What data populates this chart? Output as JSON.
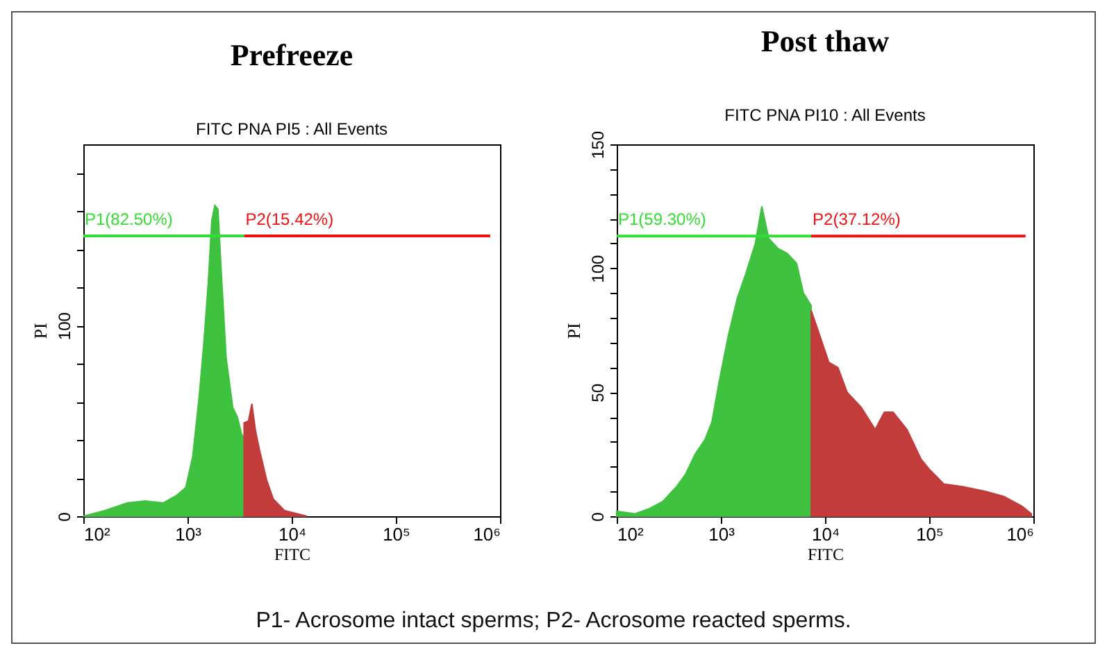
{
  "chart_data": [
    {
      "type": "area",
      "title": "Prefreeze",
      "subtitle": "FITC PNA PI5 : All Events",
      "xlabel": "FITC",
      "ylabel": "PI",
      "log": "x",
      "grid": false,
      "xlim": [
        100,
        1000000
      ],
      "xticks": [
        {
          "value": 100,
          "label": "10²"
        },
        {
          "value": 1000,
          "label": "10³"
        },
        {
          "value": 10000,
          "label": "10⁴"
        },
        {
          "value": 100000,
          "label": "10⁵"
        },
        {
          "value": 1000000,
          "label": "10⁶"
        }
      ],
      "ylim": [
        0,
        195
      ],
      "yticks": [
        0,
        {
          "value": 20,
          "label": null
        },
        {
          "value": 40,
          "label": null
        },
        {
          "value": 60,
          "label": null
        },
        {
          "value": 80,
          "label": null
        },
        100,
        {
          "value": 120,
          "label": null
        },
        {
          "value": 140,
          "label": null
        },
        {
          "value": 160,
          "label": null
        },
        {
          "value": 180,
          "label": null
        }
      ],
      "series": [
        {
          "color": "#3fc23f",
          "x": [
            100,
            162,
            265,
            392,
            583,
            790,
            960,
            1120,
            1290,
            1430,
            1580,
            1710,
            1830,
            1960,
            2140,
            2350,
            2720,
            3010,
            3310,
            3490
          ],
          "values": [
            0,
            3,
            7,
            8,
            7,
            11,
            15,
            31,
            62,
            90,
            122,
            155,
            163,
            161,
            122,
            83,
            57,
            52,
            43,
            41
          ]
        },
        {
          "color": "#c23c3c",
          "x": [
            3490,
            3850,
            4150,
            4490,
            4900,
            5750,
            6660,
            8500,
            14000
          ],
          "values": [
            49,
            50,
            59,
            45,
            35,
            19,
            9,
            3,
            0
          ]
        },
        {
          "type": "line",
          "color": "#33dd33",
          "x": [
            100,
            3490
          ],
          "values": [
            147,
            147
          ]
        },
        {
          "type": "line",
          "color": "#ee1111",
          "x": [
            3490,
            804000
          ],
          "values": [
            147,
            147
          ]
        }
      ],
      "annotations": [
        {
          "text": "P1(82.50%)",
          "x": 100,
          "y": 147
        },
        {
          "text": "P2(15.42%)",
          "x": 3490,
          "y": 147
        },
        "P1- Acrosome intact sperms; P2- Acrosome reacted sperms."
      ]
    },
    {
      "type": "area",
      "title": "Post thaw",
      "subtitle": "FITC PNA PI10 : All Events",
      "xlabel": "FITC",
      "ylabel": "PI",
      "log": "x",
      "grid": false,
      "xlim": [
        100,
        1000000
      ],
      "xticks": [
        {
          "value": 100,
          "label": "10²"
        },
        {
          "value": 1000,
          "label": "10³"
        },
        {
          "value": 10000,
          "label": "10⁴"
        },
        {
          "value": 100000,
          "label": "10⁵"
        },
        {
          "value": 1000000,
          "label": "10⁶"
        }
      ],
      "ylim": [
        0,
        150
      ],
      "yticks": [
        0,
        {
          "value": 10,
          "label": null
        },
        {
          "value": 20,
          "label": null
        },
        {
          "value": 30,
          "label": null
        },
        {
          "value": 40,
          "label": null
        },
        50,
        {
          "value": 60,
          "label": null
        },
        {
          "value": 70,
          "label": null
        },
        {
          "value": 80,
          "label": null
        },
        {
          "value": 90,
          "label": null
        },
        100,
        {
          "value": 110,
          "label": null
        },
        {
          "value": 120,
          "label": null
        },
        {
          "value": 130,
          "label": null
        },
        {
          "value": 140,
          "label": null
        },
        150
      ],
      "series": [
        {
          "color": "#3fc23f",
          "x": [
            100,
            150,
            204,
            277,
            376,
            459,
            565,
            705,
            820,
            960,
            1180,
            1440,
            1740,
            2140,
            2470,
            2880,
            3540,
            4340,
            5330,
            6200,
            7360
          ],
          "values": [
            2,
            1,
            3,
            6,
            12,
            17,
            25,
            31,
            38,
            54,
            73,
            88,
            98,
            110,
            125,
            112,
            108,
            106,
            102,
            90,
            85
          ]
        },
        {
          "color": "#c23c3c",
          "x": [
            7360,
            8880,
            10900,
            13300,
            16300,
            22200,
            30300,
            37100,
            45000,
            61200,
            83600,
            100000,
            138000,
            208000,
            348000,
            520000,
            778000,
            955000
          ],
          "values": [
            83,
            73,
            62,
            60,
            50,
            44,
            35,
            42,
            42,
            35,
            23,
            19,
            13,
            12,
            10,
            8,
            4,
            1
          ]
        },
        {
          "type": "line",
          "color": "#33dd33",
          "x": [
            100,
            7360
          ],
          "values": [
            113,
            113
          ]
        },
        {
          "type": "line",
          "color": "#ee1111",
          "x": [
            7360,
            841000
          ],
          "values": [
            113,
            113
          ]
        }
      ],
      "annotations": [
        {
          "text": "P1(59.30%)",
          "x": 100,
          "y": 113
        },
        {
          "text": "P2(37.12%)",
          "x": 7360,
          "y": 113
        }
      ]
    }
  ]
}
